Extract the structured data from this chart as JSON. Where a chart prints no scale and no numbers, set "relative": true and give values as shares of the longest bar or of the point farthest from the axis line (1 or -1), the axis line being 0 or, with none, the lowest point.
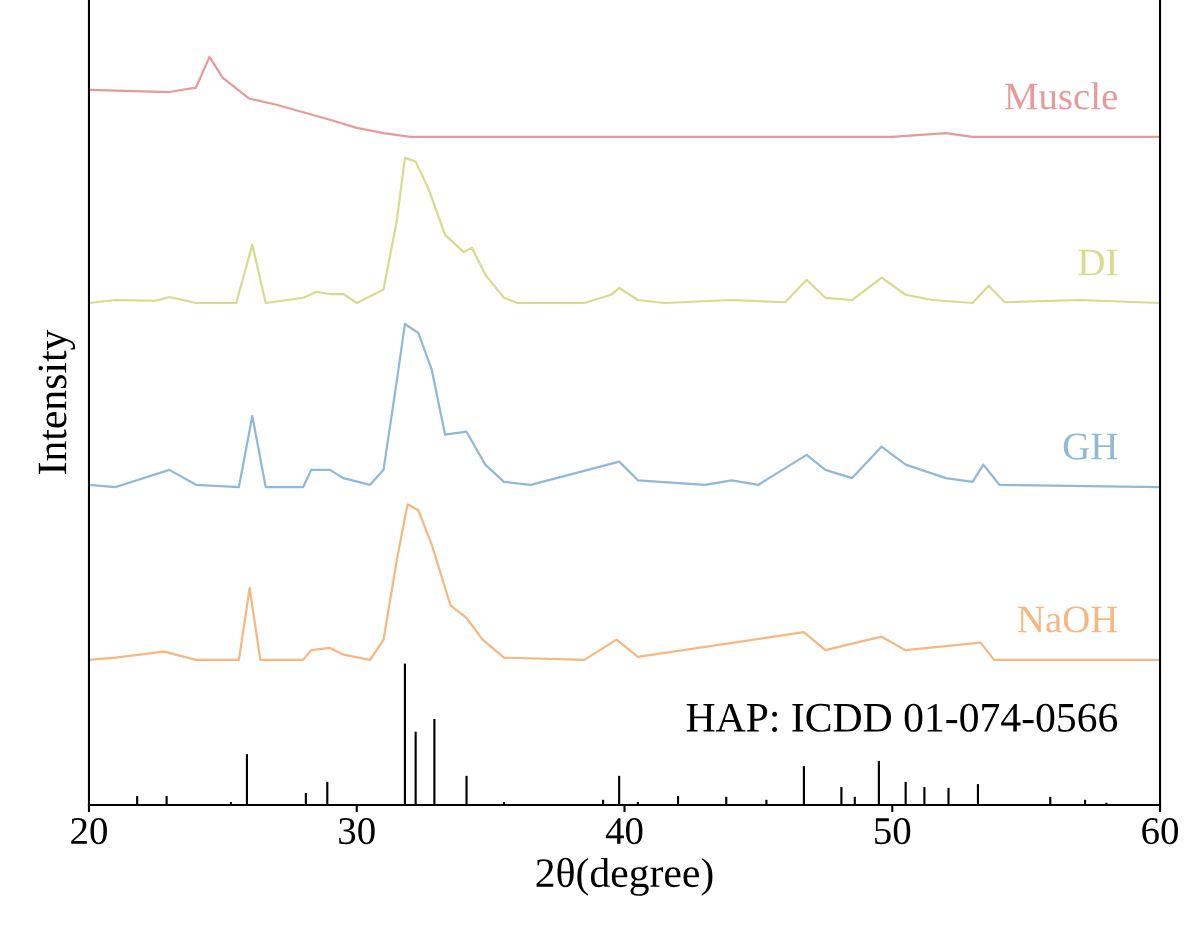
{
  "chart_data": {
    "type": "line",
    "relative": true,
    "xlabel": "2θ(degree)",
    "ylabel": "Intensity",
    "xlim": [
      20,
      60
    ],
    "xticks": [
      20,
      30,
      40,
      50,
      60
    ],
    "legend": false,
    "grid": false,
    "series": [
      {
        "name": "Muscle",
        "color": "#e8999a",
        "x": [
          20,
          23,
          24,
          24.5,
          25,
          26,
          27,
          28,
          29,
          30,
          31,
          32,
          35,
          40,
          50,
          52,
          53,
          60
        ],
        "values": [
          0.956,
          0.953,
          0.959,
          1.0,
          0.972,
          0.944,
          0.936,
          0.926,
          0.916,
          0.905,
          0.898,
          0.893,
          0.893,
          0.893,
          0.893,
          0.898,
          0.893,
          0.893
        ]
      },
      {
        "name": "DI",
        "color": "#d6dc8c",
        "x": [
          20,
          21,
          22.5,
          23,
          24,
          25.5,
          26.1,
          26.6,
          28,
          28.5,
          29,
          29.5,
          30,
          31,
          31.5,
          31.8,
          32.2,
          32.7,
          33.3,
          34,
          34.3,
          34.8,
          35.5,
          36,
          38.5,
          39.5,
          39.8,
          40.5,
          41.5,
          44,
          46,
          46.8,
          47.5,
          48.5,
          49.6,
          50.5,
          51.5,
          53,
          53.6,
          54.2,
          57,
          60
        ],
        "values": [
          0.671,
          0.675,
          0.674,
          0.679,
          0.671,
          0.671,
          0.749,
          0.671,
          0.678,
          0.686,
          0.683,
          0.683,
          0.671,
          0.689,
          0.782,
          0.865,
          0.86,
          0.822,
          0.762,
          0.739,
          0.745,
          0.709,
          0.678,
          0.671,
          0.671,
          0.682,
          0.691,
          0.675,
          0.671,
          0.675,
          0.672,
          0.702,
          0.678,
          0.675,
          0.705,
          0.682,
          0.675,
          0.671,
          0.694,
          0.672,
          0.675,
          0.671
        ]
      },
      {
        "name": "GH",
        "color": "#8fb9d6",
        "x": [
          20,
          21,
          23,
          24,
          25.6,
          26.1,
          26.6,
          28,
          28.3,
          29,
          29.5,
          30.5,
          31,
          31.5,
          31.8,
          32.3,
          32.8,
          33.3,
          34.1,
          34.8,
          35.5,
          36.5,
          39.8,
          40.5,
          43,
          44,
          45,
          46.8,
          47.5,
          48.5,
          49.6,
          50.5,
          52,
          53,
          53.4,
          54,
          60
        ],
        "values": [
          0.428,
          0.425,
          0.448,
          0.428,
          0.425,
          0.52,
          0.425,
          0.425,
          0.448,
          0.448,
          0.437,
          0.428,
          0.448,
          0.568,
          0.643,
          0.631,
          0.582,
          0.495,
          0.499,
          0.455,
          0.432,
          0.428,
          0.459,
          0.434,
          0.428,
          0.434,
          0.428,
          0.468,
          0.448,
          0.437,
          0.479,
          0.455,
          0.437,
          0.432,
          0.455,
          0.428,
          0.425
        ]
      },
      {
        "name": "NaOH",
        "color": "#f5b880",
        "x": [
          20,
          21,
          22.8,
          24,
          25.6,
          26,
          26.4,
          28,
          28.3,
          29,
          29.5,
          30.5,
          31,
          31.5,
          31.9,
          32.3,
          32.8,
          33.5,
          34.1,
          34.7,
          35.5,
          38.5,
          39.7,
          40.5,
          46.7,
          47.5,
          49.6,
          50.5,
          53.3,
          53.8,
          60
        ],
        "values": [
          0.194,
          0.197,
          0.205,
          0.194,
          0.194,
          0.29,
          0.194,
          0.194,
          0.207,
          0.21,
          0.201,
          0.194,
          0.221,
          0.328,
          0.402,
          0.394,
          0.348,
          0.267,
          0.25,
          0.221,
          0.197,
          0.194,
          0.221,
          0.198,
          0.231,
          0.207,
          0.225,
          0.207,
          0.217,
          0.194,
          0.194
        ]
      },
      {
        "name": "HAP: ICDD 01-074-0566",
        "type": "bar",
        "color": "#000000",
        "x": [
          21.8,
          22.9,
          25.3,
          25.9,
          28.1,
          28.9,
          31.8,
          32.2,
          32.9,
          34.1,
          35.5,
          39.2,
          39.8,
          40.5,
          42.0,
          43.8,
          45.3,
          46.7,
          48.1,
          48.6,
          49.5,
          50.5,
          51.2,
          52.1,
          53.2,
          55.9,
          57.2,
          58.0
        ],
        "values": [
          0.012,
          0.012,
          0.004,
          0.068,
          0.016,
          0.031,
          0.189,
          0.098,
          0.115,
          0.039,
          0.004,
          0.007,
          0.039,
          0.004,
          0.012,
          0.011,
          0.007,
          0.052,
          0.024,
          0.011,
          0.059,
          0.031,
          0.024,
          0.023,
          0.028,
          0.011,
          0.007,
          0.003
        ]
      }
    ]
  }
}
